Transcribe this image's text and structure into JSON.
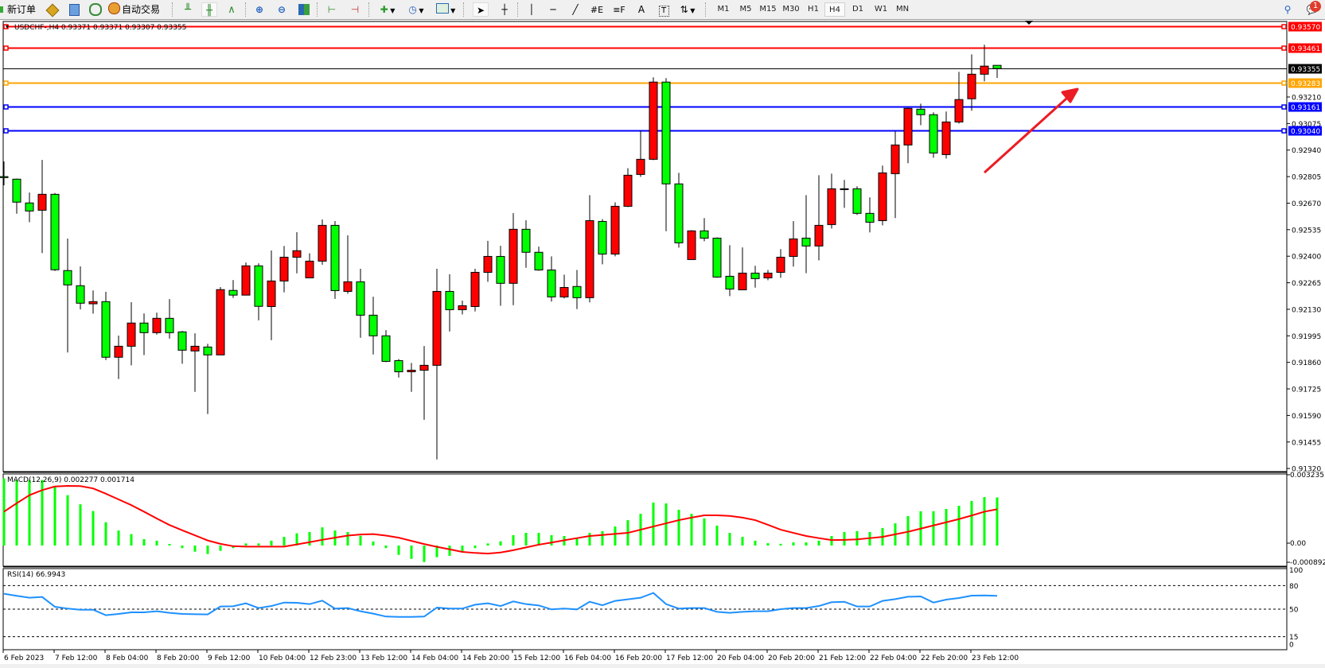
{
  "toolbar": {
    "new_order_label": "新订单",
    "auto_trading_label": "自动交易",
    "text_tool_label": "A",
    "timeframes": [
      "M1",
      "M5",
      "M15",
      "M30",
      "H1",
      "H4",
      "D1",
      "W1",
      "MN"
    ],
    "active_timeframe": "H4",
    "notification_count": "1"
  },
  "chart": {
    "header": "USDCHF-,H4  0.93371 0.93371 0.93307 0.93355",
    "symbol": "USDCHF-",
    "timeframe": "H4",
    "colors": {
      "bull": "#ff0000",
      "bear": "#00ff00",
      "arrow": "#ec1c24"
    },
    "levels": [
      {
        "price": "0.93570",
        "color": "#ff0000",
        "label_color": "#ffffff"
      },
      {
        "price": "0.93461",
        "color": "#ff0000",
        "label_color": "#ffffff"
      },
      {
        "price": "0.93355",
        "color": "#000000",
        "label_color": "#ffffff",
        "current": true
      },
      {
        "price": "0.93283",
        "color": "#ffa500",
        "label_color": "#ffffff"
      },
      {
        "price": "0.93161",
        "color": "#0000ff",
        "label_color": "#ffffff"
      },
      {
        "price": "0.93040",
        "color": "#0000ff",
        "label_color": "#ffffff"
      }
    ],
    "price_ticks": [
      "0.93210",
      "0.93075",
      "0.92940",
      "0.92805",
      "0.92670",
      "0.92535",
      "0.92400",
      "0.92265",
      "0.92130",
      "0.91995",
      "0.91860",
      "0.91725",
      "0.91590",
      "0.91455",
      "0.91320"
    ],
    "candles": [
      [
        0.92805,
        0.92882,
        0.92761,
        0.928
      ],
      [
        0.92792,
        0.92795,
        0.92616,
        0.92675
      ],
      [
        0.92671,
        0.92724,
        0.92573,
        0.9263
      ],
      [
        0.92634,
        0.9289,
        0.92416,
        0.92715
      ],
      [
        0.92715,
        0.92722,
        0.92325,
        0.92331
      ],
      [
        0.92327,
        0.9249,
        0.9191,
        0.92254
      ],
      [
        0.9225,
        0.92348,
        0.92129,
        0.92161
      ],
      [
        0.92158,
        0.92226,
        0.92108,
        0.92169
      ],
      [
        0.92169,
        0.92219,
        0.91872,
        0.91886
      ],
      [
        0.91886,
        0.91996,
        0.91775,
        0.91942
      ],
      [
        0.91942,
        0.92166,
        0.91845,
        0.9206
      ],
      [
        0.9206,
        0.92109,
        0.91897,
        0.92011
      ],
      [
        0.92011,
        0.92113,
        0.92001,
        0.92084
      ],
      [
        0.92084,
        0.92182,
        0.91981,
        0.92011
      ],
      [
        0.92015,
        0.9202,
        0.91853,
        0.91922
      ],
      [
        0.91918,
        0.92008,
        0.9171,
        0.91942
      ],
      [
        0.91938,
        0.91954,
        0.91597,
        0.91898
      ],
      [
        0.91898,
        0.92243,
        0.91898,
        0.9223
      ],
      [
        0.92226,
        0.92279,
        0.92188,
        0.92202
      ],
      [
        0.92202,
        0.92368,
        0.92202,
        0.92351
      ],
      [
        0.92351,
        0.92364,
        0.92074,
        0.92145
      ],
      [
        0.92144,
        0.92429,
        0.91973,
        0.92274
      ],
      [
        0.92274,
        0.92452,
        0.92216,
        0.92395
      ],
      [
        0.92395,
        0.92522,
        0.92313,
        0.92428
      ],
      [
        0.9229,
        0.92415,
        0.9229,
        0.92375
      ],
      [
        0.92375,
        0.92587,
        0.92357,
        0.92557
      ],
      [
        0.92557,
        0.92579,
        0.92183,
        0.92225
      ],
      [
        0.92221,
        0.92506,
        0.92209,
        0.9227
      ],
      [
        0.9227,
        0.92336,
        0.91985,
        0.921
      ],
      [
        0.921,
        0.92194,
        0.919,
        0.91995
      ],
      [
        0.91995,
        0.92024,
        0.91861,
        0.91865
      ],
      [
        0.91869,
        0.91877,
        0.91783,
        0.91812
      ],
      [
        0.91812,
        0.91857,
        0.9171,
        0.9182
      ],
      [
        0.9182,
        0.91943,
        0.91568,
        0.91845
      ],
      [
        0.91845,
        0.92336,
        0.91366,
        0.92221
      ],
      [
        0.92221,
        0.92308,
        0.92017,
        0.92128
      ],
      [
        0.92128,
        0.92174,
        0.92104,
        0.92148
      ],
      [
        0.92144,
        0.92336,
        0.92119,
        0.92318
      ],
      [
        0.92318,
        0.92478,
        0.9227,
        0.92399
      ],
      [
        0.92399,
        0.92453,
        0.92148,
        0.92262
      ],
      [
        0.92262,
        0.92619,
        0.92151,
        0.92537
      ],
      [
        0.92537,
        0.92583,
        0.92341,
        0.9242
      ],
      [
        0.9242,
        0.92449,
        0.92326,
        0.9233
      ],
      [
        0.9233,
        0.92399,
        0.92169,
        0.92193
      ],
      [
        0.92193,
        0.92306,
        0.92185,
        0.92241
      ],
      [
        0.92246,
        0.9233,
        0.92131,
        0.92189
      ],
      [
        0.92189,
        0.92711,
        0.92165,
        0.92581
      ],
      [
        0.92577,
        0.92589,
        0.92359,
        0.92411
      ],
      [
        0.92411,
        0.92674,
        0.92399,
        0.92654
      ],
      [
        0.92654,
        0.92848,
        0.9265,
        0.92812
      ],
      [
        0.92816,
        0.93039,
        0.92804,
        0.92893
      ],
      [
        0.92893,
        0.9331,
        0.92889,
        0.93286
      ],
      [
        0.93286,
        0.93306,
        0.92527,
        0.92768
      ],
      [
        0.92768,
        0.92824,
        0.92444,
        0.92468
      ],
      [
        0.92383,
        0.92533,
        0.92383,
        0.92529
      ],
      [
        0.92529,
        0.92594,
        0.92476,
        0.92492
      ],
      [
        0.92492,
        0.92496,
        0.9229,
        0.92294
      ],
      [
        0.92298,
        0.92456,
        0.92197,
        0.92233
      ],
      [
        0.92229,
        0.92445,
        0.92229,
        0.92314
      ],
      [
        0.92314,
        0.92351,
        0.9224,
        0.92286
      ],
      [
        0.9229,
        0.9233,
        0.92278,
        0.92314
      ],
      [
        0.92318,
        0.92436,
        0.9229,
        0.92395
      ],
      [
        0.92399,
        0.92579,
        0.92347,
        0.92488
      ],
      [
        0.92492,
        0.92711,
        0.92314,
        0.92452
      ],
      [
        0.92452,
        0.92812,
        0.92379,
        0.92557
      ],
      [
        0.92561,
        0.9282,
        0.92541,
        0.92743
      ],
      [
        0.92743,
        0.92788,
        0.92646,
        0.9274
      ],
      [
        0.92743,
        0.92756,
        0.9261,
        0.92618
      ],
      [
        0.92618,
        0.92699,
        0.92521,
        0.92573
      ],
      [
        0.92581,
        0.92861,
        0.92557,
        0.92824
      ],
      [
        0.9282,
        0.93035,
        0.92594,
        0.92966
      ],
      [
        0.92966,
        0.93155,
        0.92873,
        0.93152
      ],
      [
        0.93148,
        0.93176,
        0.93067,
        0.9312
      ],
      [
        0.9312,
        0.93132,
        0.92901,
        0.92925
      ],
      [
        0.92917,
        0.93136,
        0.92897,
        0.93083
      ],
      [
        0.93083,
        0.93338,
        0.93075,
        0.93197
      ],
      [
        0.93201,
        0.93427,
        0.9314,
        0.93326
      ],
      [
        0.93326,
        0.93476,
        0.9329,
        0.93367
      ],
      [
        0.93371,
        0.93371,
        0.93307,
        0.93355
      ]
    ],
    "time_labels": [
      "6 Feb 2023",
      "7 Feb 12:00",
      "8 Feb 04:00",
      "8 Feb 20:00",
      "9 Feb 12:00",
      "10 Feb 04:00",
      "12 Feb 23:00",
      "13 Feb 12:00",
      "14 Feb 04:00",
      "14 Feb 20:00",
      "15 Feb 12:00",
      "16 Feb 04:00",
      "16 Feb 20:00",
      "17 Feb 12:00",
      "20 Feb 04:00",
      "20 Feb 20:00",
      "21 Feb 12:00",
      "22 Feb 04:00",
      "22 Feb 20:00",
      "23 Feb 12:00"
    ]
  },
  "macd": {
    "header": "MACD(12,26,9) 0.002277 0.001714",
    "axis_labels": [
      "0.003235",
      "0.00",
      "-0.000892"
    ],
    "histogram_color": "#00ff00",
    "signal_color": "#ff0000",
    "main": [
      0.00317,
      0.0031,
      0.0031,
      0.0031,
      0.00276,
      0.00238,
      0.00195,
      0.00163,
      0.0011,
      0.00071,
      0.00054,
      0.0003,
      0.00023,
      7.5e-05,
      -0.00012,
      -0.00029,
      -0.0004,
      -0.00025,
      -0.00012,
      0.0001,
      0.0001,
      0.00023,
      0.00041,
      0.00058,
      0.00064,
      0.00086,
      0.00071,
      0.00064,
      0.00046,
      0.00019,
      -0.00012,
      -0.00044,
      -0.00063,
      -0.00078,
      -0.00055,
      -0.00049,
      -0.00029,
      -0.00012,
      0.0001,
      0.0002,
      0.00049,
      0.0006,
      0.0006,
      0.00049,
      0.00045,
      0.00033,
      0.0006,
      0.00068,
      0.0009,
      0.0012,
      0.0015,
      0.00203,
      0.00199,
      0.00169,
      0.0015,
      0.00128,
      0.00094,
      0.0006,
      0.00041,
      0.00023,
      0.00011,
      8e-05,
      0.00015,
      0.00015,
      0.00023,
      0.00045,
      0.00064,
      0.00068,
      0.00064,
      0.00083,
      0.00105,
      0.00139,
      0.00162,
      0.00162,
      0.00173,
      0.00188,
      0.00211,
      0.00229,
      0.002277
    ],
    "signal": [
      0.0016,
      0.002,
      0.00238,
      0.00262,
      0.00279,
      0.00282,
      0.00281,
      0.0027,
      0.00245,
      0.00218,
      0.00191,
      0.0016,
      0.00128,
      0.00097,
      0.00072,
      0.00048,
      0.00024,
      8e-05,
      -3e-05,
      -5e-05,
      -5e-05,
      -5e-05,
      -5e-05,
      5e-05,
      0.00016,
      0.00027,
      0.00037,
      0.00047,
      0.00052,
      0.00054,
      0.00047,
      0.00037,
      0.00022,
      7e-05,
      -6e-05,
      -0.00018,
      -0.0003,
      -0.00035,
      -0.00038,
      -0.00033,
      -0.00022,
      -9e-05,
      4e-05,
      0.00014,
      0.00025,
      0.00035,
      0.00045,
      0.0005,
      0.00055,
      0.0006,
      0.00075,
      0.0009,
      0.00105,
      0.0012,
      0.00132,
      0.00143,
      0.00143,
      0.0014,
      0.00132,
      0.0012,
      0.00098,
      0.00075,
      0.0006,
      0.00045,
      0.00035,
      0.00026,
      0.00027,
      0.00029,
      0.00035,
      0.00041,
      0.00053,
      0.00065,
      0.0008,
      0.00095,
      0.0011,
      0.00125,
      0.00142,
      0.0016,
      0.001714
    ]
  },
  "rsi": {
    "header": "RSI(14) 66.9943",
    "axis_labels": [
      "100",
      "80",
      "50",
      "15",
      "0"
    ],
    "levels": [
      80,
      50,
      15
    ],
    "color": "#1e90ff",
    "values": [
      69.6,
      66.9,
      64.5,
      65.5,
      53,
      50.7,
      49.3,
      49.3,
      42.3,
      43.9,
      46,
      46,
      47.3,
      45.3,
      43.9,
      43.6,
      43.3,
      53.4,
      53.7,
      57.4,
      51.4,
      54,
      58.4,
      58.1,
      56.4,
      60.8,
      50.7,
      51.4,
      47.3,
      44.3,
      40.6,
      40.2,
      40.2,
      40.6,
      52,
      50.7,
      50.7,
      55.7,
      57.4,
      54,
      59.8,
      56.4,
      54.7,
      49.7,
      50.7,
      49.7,
      59.4,
      55,
      60.5,
      62.5,
      64.5,
      70.6,
      56.4,
      50.7,
      51.4,
      51.4,
      46.6,
      45.3,
      46.6,
      47.3,
      47.3,
      50,
      51.4,
      51.4,
      54,
      58.8,
      59.4,
      53.4,
      53.4,
      60.5,
      62.8,
      65.8,
      66.2,
      58.4,
      62.1,
      64.2,
      67.2,
      67.5,
      66.9943
    ]
  }
}
